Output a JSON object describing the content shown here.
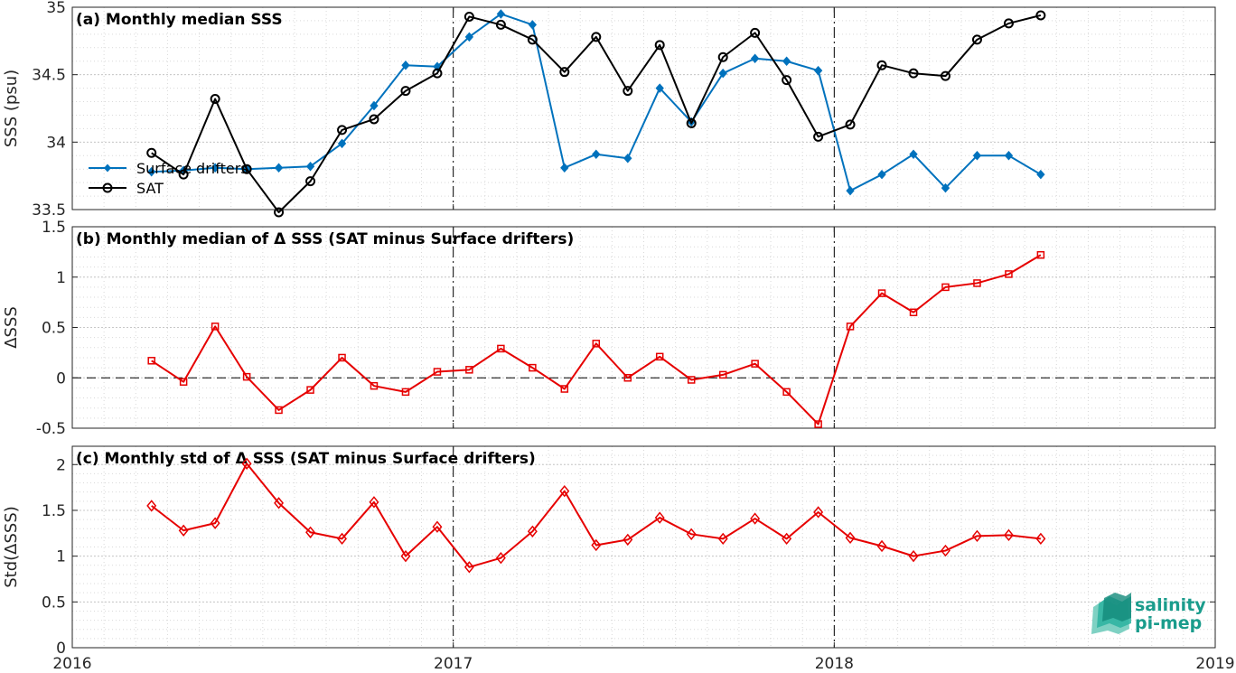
{
  "x_ticks": [
    "2016",
    "2017",
    "2018",
    "2019"
  ],
  "logo": {
    "line1": "salinity",
    "line2": "pi-mep",
    "color": "#1a9c8c"
  },
  "colors": {
    "drifters": "#0072bd",
    "sat": "#000000",
    "delta": "#e60000",
    "grid": "#d9d9d9",
    "axis": "#262626"
  },
  "chart_data": [
    {
      "type": "line",
      "title": "(a) Monthly median SSS",
      "ylabel": "SSS (psu)",
      "xlim": [
        2016,
        2019
      ],
      "ylim": [
        33.5,
        35
      ],
      "yticks": [
        "33.5",
        "34",
        "34.5",
        "35"
      ],
      "ytick_values": [
        33.5,
        34,
        34.5,
        35
      ],
      "legend_position": "middle-left",
      "grid": true,
      "x": [
        2016.208,
        2016.292,
        2016.375,
        2016.458,
        2016.542,
        2016.625,
        2016.708,
        2016.792,
        2016.875,
        2016.958,
        2017.042,
        2017.125,
        2017.208,
        2017.292,
        2017.375,
        2017.458,
        2017.542,
        2017.625,
        2017.708,
        2017.792,
        2017.875,
        2017.958,
        2018.042,
        2018.125,
        2018.208,
        2018.292,
        2018.375,
        2018.458,
        2018.542
      ],
      "series": [
        {
          "name": "Surface drifters",
          "marker": "diamond-filled",
          "color": "#0072bd",
          "values": [
            33.78,
            33.79,
            33.81,
            33.8,
            33.81,
            33.82,
            33.99,
            34.27,
            34.57,
            34.56,
            34.78,
            34.95,
            34.87,
            33.81,
            33.91,
            33.88,
            34.4,
            34.15,
            34.51,
            34.62,
            34.6,
            34.53,
            33.64,
            33.76,
            33.91,
            33.66,
            33.9,
            33.9,
            33.76
          ]
        },
        {
          "name": "SAT",
          "marker": "circle-open",
          "color": "#000000",
          "values": [
            33.92,
            33.76,
            34.32,
            33.8,
            33.48,
            33.71,
            34.09,
            34.17,
            34.38,
            34.51,
            34.93,
            34.87,
            34.76,
            34.52,
            34.78,
            34.38,
            34.72,
            34.14,
            34.63,
            34.81,
            34.46,
            34.04,
            34.13,
            34.57,
            34.51,
            34.49,
            34.76,
            34.88,
            34.94
          ]
        }
      ]
    },
    {
      "type": "line",
      "title": "(b) Monthly median of Δ SSS (SAT minus Surface drifters)",
      "ylabel": "ΔSSS",
      "xlim": [
        2016,
        2019
      ],
      "ylim": [
        -0.5,
        1.5
      ],
      "yticks": [
        "-0.5",
        "0",
        "0.5",
        "1",
        "1.5"
      ],
      "ytick_values": [
        -0.5,
        0,
        0.5,
        1,
        1.5
      ],
      "grid": true,
      "zero_line": true,
      "x": [
        2016.208,
        2016.292,
        2016.375,
        2016.458,
        2016.542,
        2016.625,
        2016.708,
        2016.792,
        2016.875,
        2016.958,
        2017.042,
        2017.125,
        2017.208,
        2017.292,
        2017.375,
        2017.458,
        2017.542,
        2017.625,
        2017.708,
        2017.792,
        2017.875,
        2017.958,
        2018.042,
        2018.125,
        2018.208,
        2018.292,
        2018.375,
        2018.458,
        2018.542
      ],
      "series": [
        {
          "marker": "square-open",
          "color": "#e60000",
          "values": [
            0.17,
            -0.04,
            0.51,
            0.01,
            -0.32,
            -0.12,
            0.2,
            -0.08,
            -0.14,
            0.06,
            0.08,
            0.29,
            0.1,
            -0.11,
            0.34,
            0.0,
            0.21,
            -0.02,
            0.03,
            0.14,
            -0.14,
            -0.46,
            0.51,
            0.84,
            0.65,
            0.9,
            0.94,
            1.03,
            1.22
          ]
        }
      ]
    },
    {
      "type": "line",
      "title": "(c) Monthly std of Δ SSS (SAT minus Surface drifters)",
      "ylabel": "Std(ΔSSS)",
      "xlim": [
        2016,
        2019
      ],
      "ylim": [
        0,
        2.2
      ],
      "yticks": [
        "0",
        "0.5",
        "1",
        "1.5",
        "2"
      ],
      "ytick_values": [
        0,
        0.5,
        1,
        1.5,
        2
      ],
      "grid": true,
      "x": [
        2016.208,
        2016.292,
        2016.375,
        2016.458,
        2016.542,
        2016.625,
        2016.708,
        2016.792,
        2016.875,
        2016.958,
        2017.042,
        2017.125,
        2017.208,
        2017.292,
        2017.375,
        2017.458,
        2017.542,
        2017.625,
        2017.708,
        2017.792,
        2017.875,
        2017.958,
        2018.042,
        2018.125,
        2018.208,
        2018.292,
        2018.375,
        2018.458,
        2018.542
      ],
      "series": [
        {
          "marker": "diamond-open",
          "color": "#e60000",
          "values": [
            1.55,
            1.28,
            1.36,
            2.01,
            1.58,
            1.26,
            1.19,
            1.59,
            1.0,
            1.32,
            0.88,
            0.98,
            1.27,
            1.71,
            1.12,
            1.18,
            1.42,
            1.24,
            1.19,
            1.41,
            1.19,
            1.48,
            1.2,
            1.11,
            1.0,
            1.06,
            1.22,
            1.23,
            1.19
          ]
        }
      ]
    }
  ]
}
